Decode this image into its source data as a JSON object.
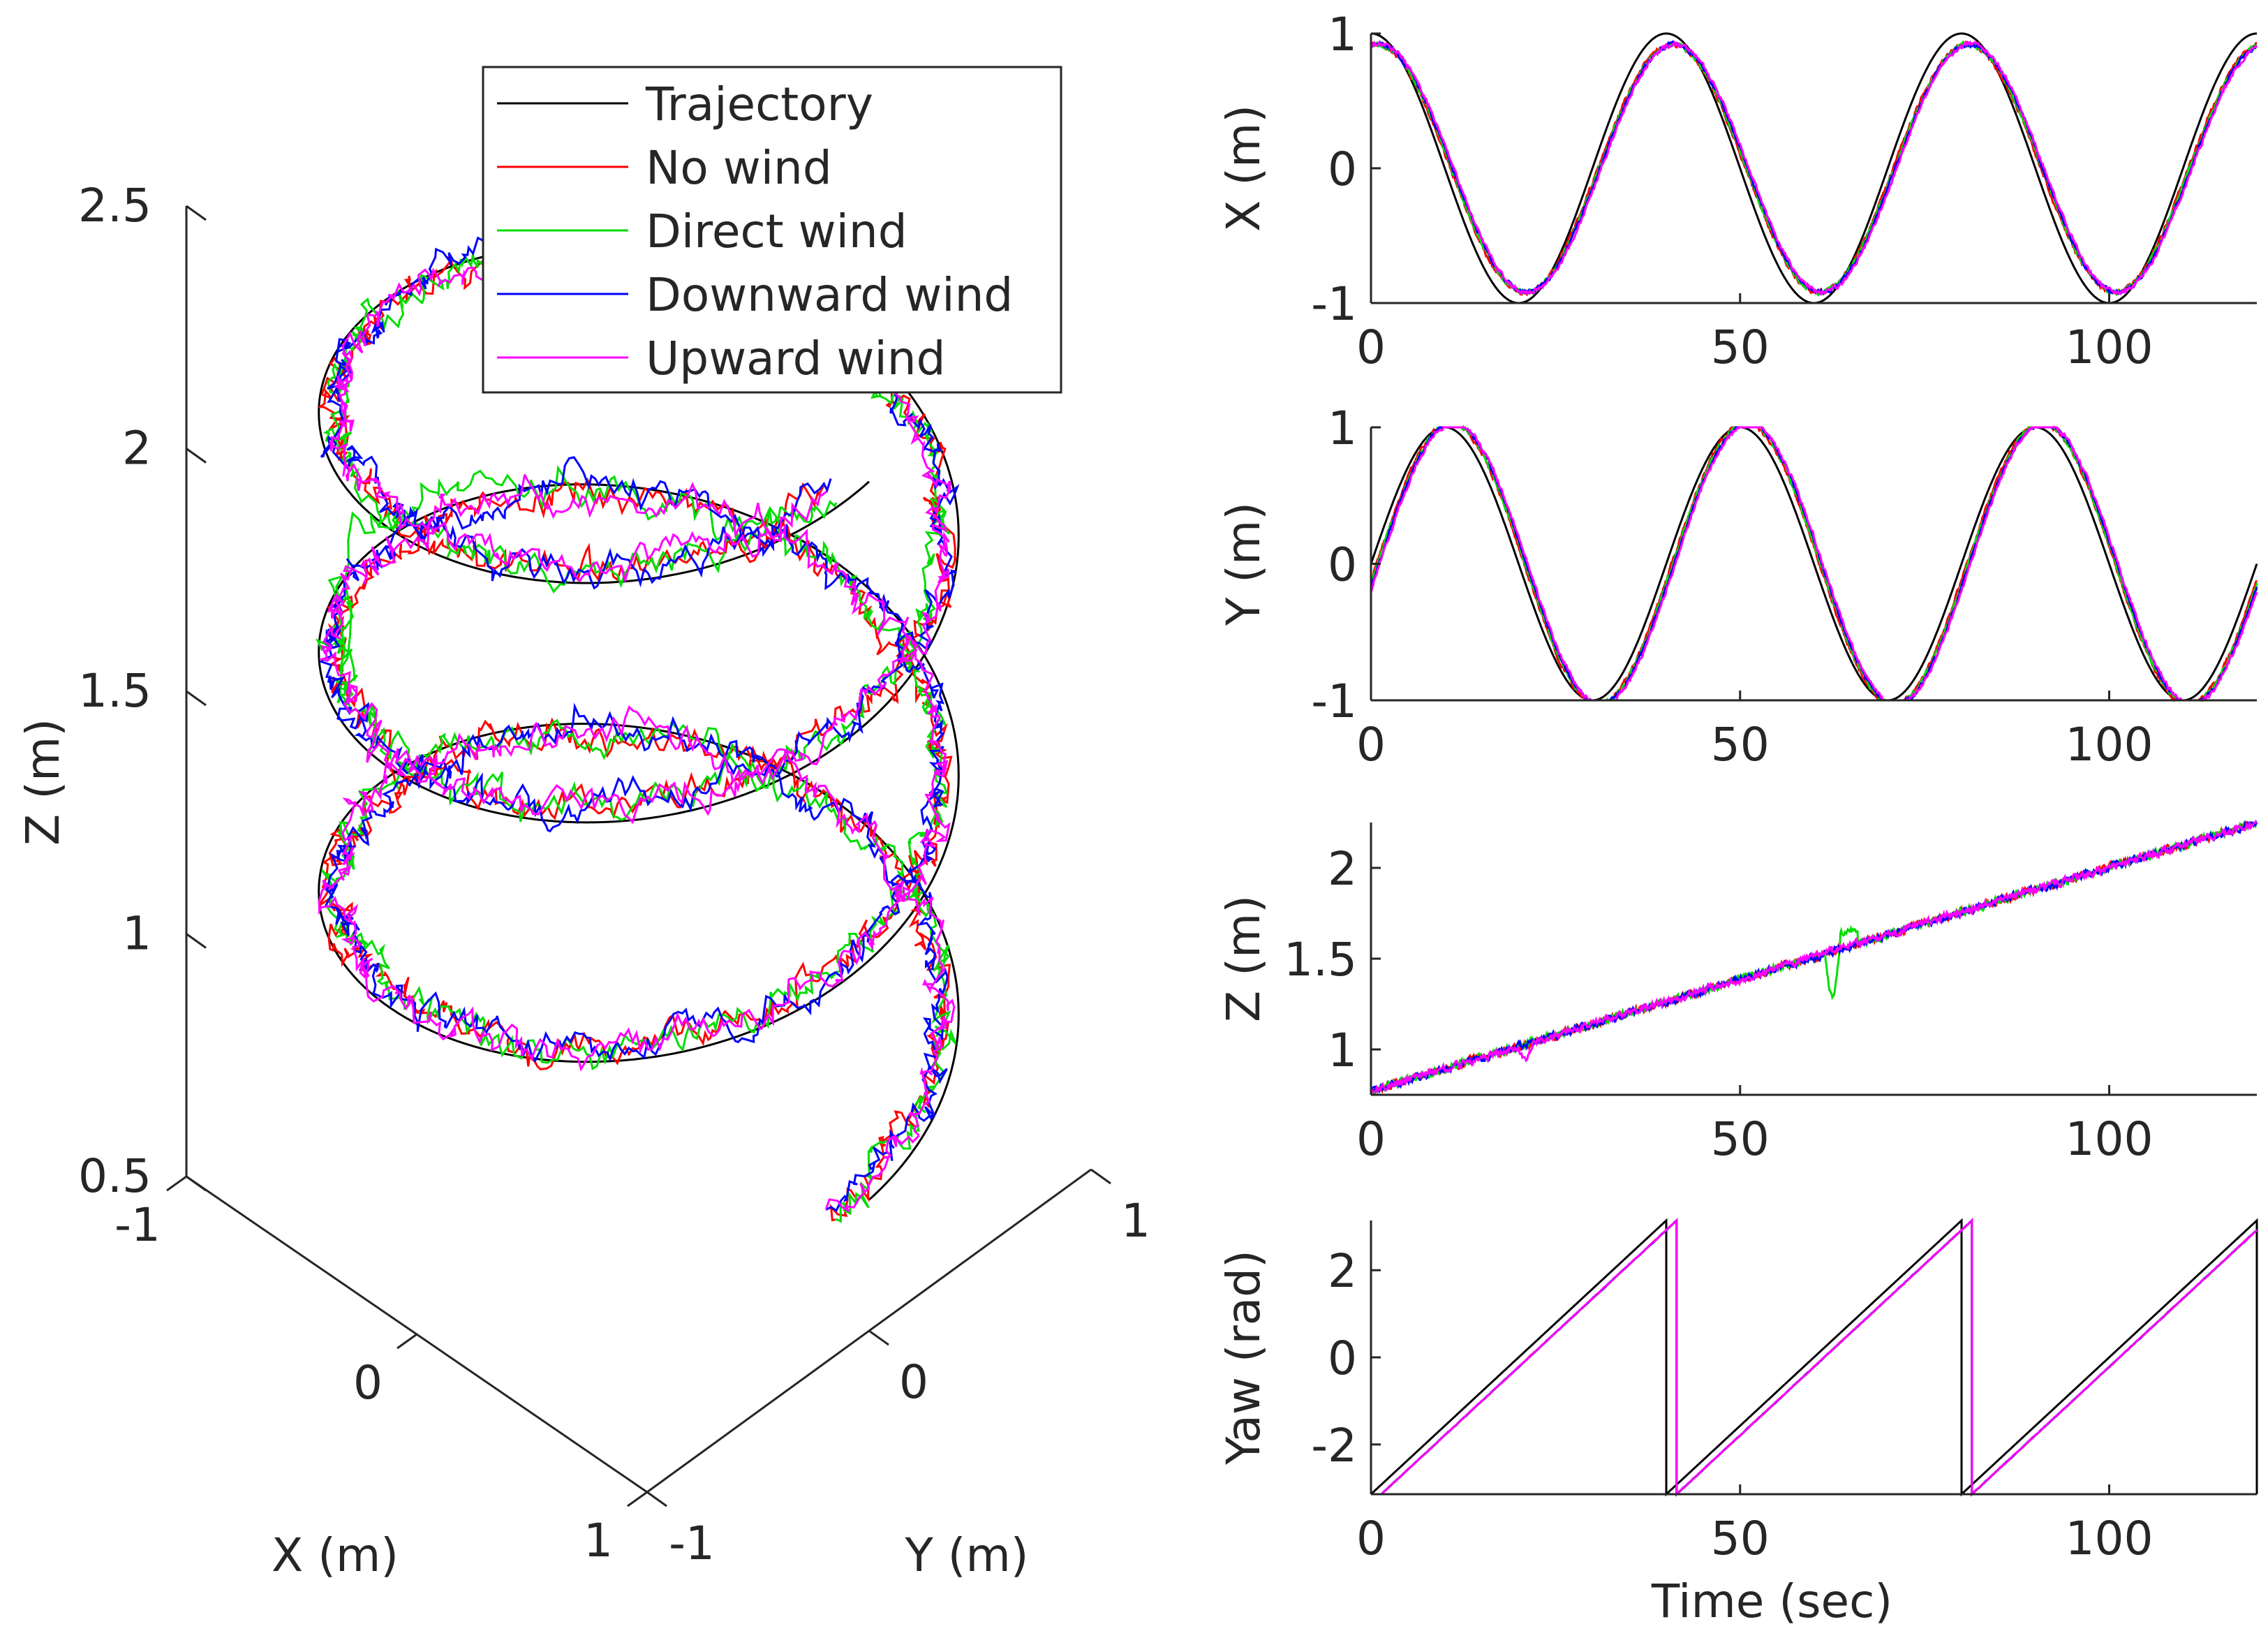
{
  "colors": {
    "trajectory": "#000000",
    "no_wind": "#ff0000",
    "direct_wind": "#00dd00",
    "downward_wind": "#0000ff",
    "upward_wind": "#ff00ff",
    "axis": "#262626"
  },
  "chart_data": [
    {
      "id": "helix3d",
      "type": "line3d",
      "title": "",
      "xlabel": "X (m)",
      "ylabel": "Y (m)",
      "zlabel": "Z (m)",
      "xlim": [
        -1,
        1
      ],
      "ylim": [
        -1,
        1
      ],
      "zlim": [
        0.5,
        2.5
      ],
      "x_ticks": [
        -1,
        0,
        1
      ],
      "y_ticks": [
        -1,
        0,
        1
      ],
      "z_ticks": [
        0.5,
        1,
        1.5,
        2,
        2.5
      ],
      "legend": {
        "placement": "top",
        "entries": [
          "Trajectory",
          "No wind",
          "Direct wind",
          "Downward wind",
          "Upward wind"
        ]
      },
      "series": [
        {
          "name": "Trajectory",
          "helix": {
            "turns": 3,
            "radius": 1,
            "z_start": 0.77,
            "z_end": 2.25
          }
        },
        {
          "name": "No wind",
          "radius_scale": 0.95
        },
        {
          "name": "Direct wind",
          "radius_scale": 0.95
        },
        {
          "name": "Downward wind",
          "radius_scale": 0.95
        },
        {
          "name": "Upward wind",
          "radius_scale": 0.95
        }
      ]
    },
    {
      "id": "x_time",
      "type": "line",
      "xlabel": "",
      "ylabel": "X (m)",
      "xlim": [
        0,
        120
      ],
      "ylim": [
        -1,
        1
      ],
      "x_ticks": [
        0,
        50,
        100
      ],
      "y_ticks": [
        -1,
        0,
        1
      ],
      "reference": "x = cos(2*pi*t/40)",
      "actual_amplitude": 0.92,
      "series": [
        "Trajectory",
        "No wind",
        "Direct wind",
        "Downward wind",
        "Upward wind"
      ]
    },
    {
      "id": "y_time",
      "type": "line",
      "xlabel": "",
      "ylabel": "Y (m)",
      "xlim": [
        0,
        120
      ],
      "ylim": [
        -1,
        1
      ],
      "x_ticks": [
        0,
        50,
        100
      ],
      "y_ticks": [
        -1,
        0,
        1
      ],
      "reference": "y = sin(2*pi*t/40)",
      "actual_amplitude": 1.03,
      "series": [
        "Trajectory",
        "No wind",
        "Direct wind",
        "Downward wind",
        "Upward wind"
      ]
    },
    {
      "id": "z_time",
      "type": "line",
      "xlabel": "",
      "ylabel": "Z (m)",
      "xlim": [
        0,
        120
      ],
      "ylim": [
        0.75,
        2.25
      ],
      "x_ticks": [
        0,
        50,
        100
      ],
      "y_ticks": [
        1,
        1.5,
        2
      ],
      "reference": "z from 0.77 at t=0 to 2.25 at t=120",
      "series": [
        "Trajectory",
        "No wind",
        "Direct wind",
        "Downward wind",
        "Upward wind"
      ]
    },
    {
      "id": "yaw_time",
      "type": "line",
      "xlabel": "Time (sec)",
      "ylabel": "Yaw (rad)",
      "xlim": [
        0,
        120
      ],
      "ylim": [
        -3.1416,
        3.1416
      ],
      "x_ticks": [
        0,
        50,
        100
      ],
      "y_ticks": [
        -2,
        0,
        2
      ],
      "reference": "yaw sawtooth from -pi to pi, period 40 s",
      "series": [
        "Trajectory",
        "No wind",
        "Direct wind",
        "Downward wind",
        "Upward wind"
      ]
    }
  ]
}
